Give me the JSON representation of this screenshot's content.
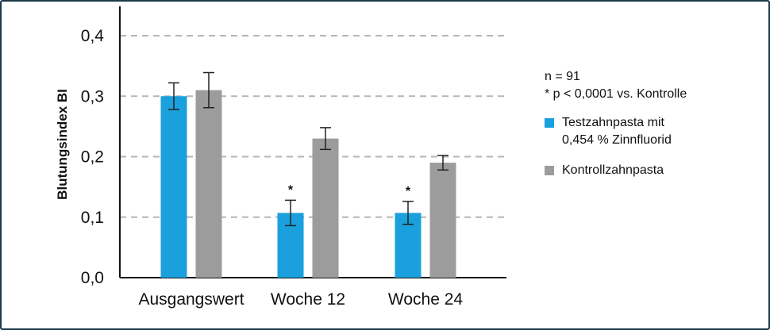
{
  "chart_data": {
    "type": "bar",
    "categories": [
      "Ausgangswert",
      "Woche 12",
      "Woche 24"
    ],
    "series": [
      {
        "name": "Testzahnpasta mit\n0,454 % Zinnfluorid",
        "color": "#1aa0dc",
        "values": [
          0.3,
          0.107,
          0.107
        ],
        "error": [
          0.022,
          0.021,
          0.019
        ],
        "markers": [
          "",
          "*",
          "*"
        ]
      },
      {
        "name": "Kontrollzahnpasta",
        "color": "#9c9c9c",
        "values": [
          0.31,
          0.23,
          0.19
        ],
        "error": [
          0.029,
          0.018,
          0.012
        ],
        "markers": [
          "",
          "",
          ""
        ]
      }
    ],
    "ylabel": "Blutungsindex BI",
    "xlabel": "",
    "ylim": [
      0,
      0.4
    ],
    "yticks": [
      0.0,
      0.1,
      0.2,
      0.3,
      0.4
    ],
    "ytick_labels": [
      "0,0",
      "0,1",
      "0,2",
      "0,3",
      "0,4"
    ],
    "grid": "dashed horizontal",
    "legend_position": "right"
  },
  "legend": {
    "notes": [
      "n = 91",
      "* p < 0,0001 vs. Kontrolle"
    ]
  }
}
